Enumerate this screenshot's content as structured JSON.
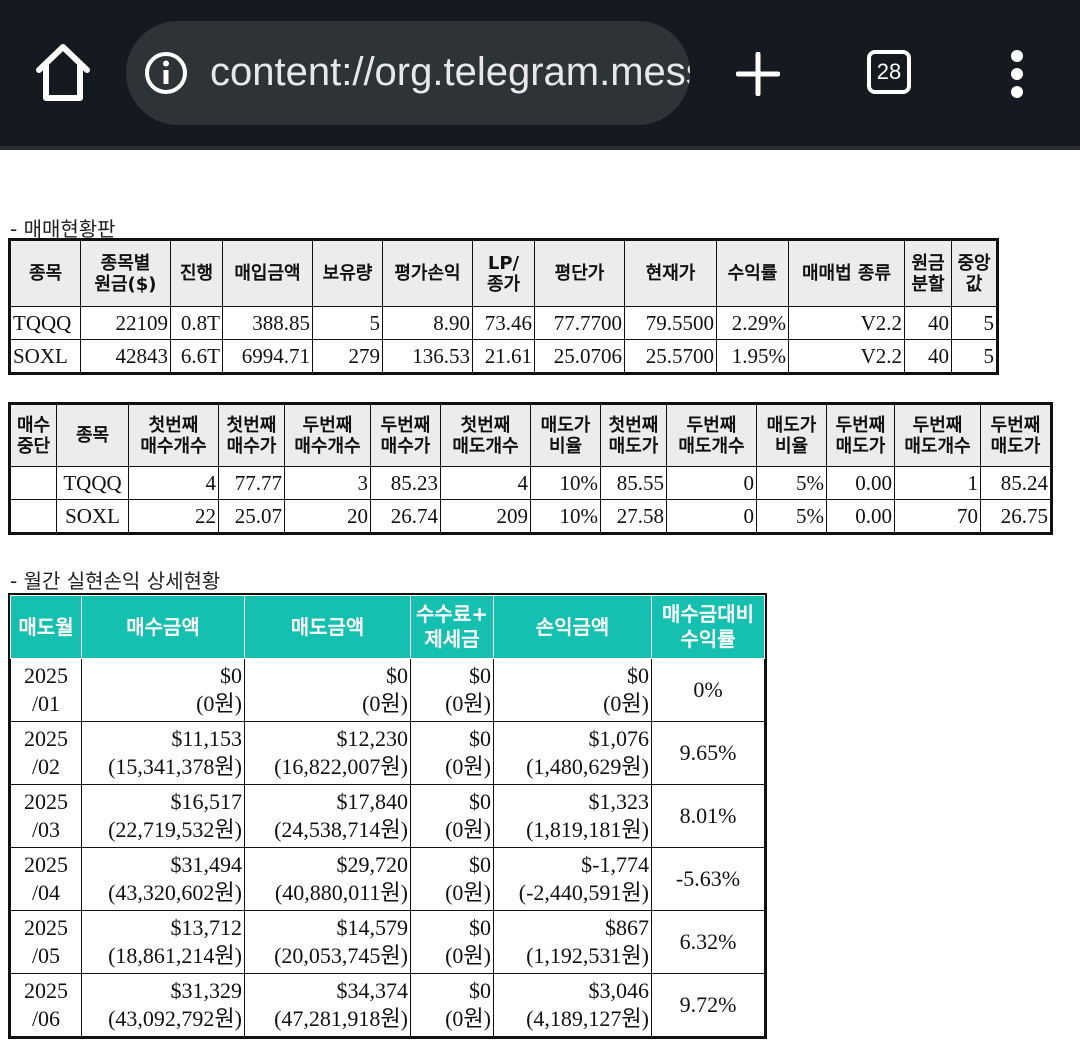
{
  "browser": {
    "url": "content://org.telegram.messenger",
    "tab_count": "28"
  },
  "section1_title": "- 매매현황판",
  "table1": {
    "headers": [
      {
        "l1": "종목",
        "l2": ""
      },
      {
        "l1": "종목별",
        "l2": "원금($)"
      },
      {
        "l1": "진행",
        "l2": ""
      },
      {
        "l1": "매입금액",
        "l2": ""
      },
      {
        "l1": "보유량",
        "l2": ""
      },
      {
        "l1": "평가손익",
        "l2": ""
      },
      {
        "l1": "LP/",
        "l2": "종가"
      },
      {
        "l1": "평단가",
        "l2": ""
      },
      {
        "l1": "현재가",
        "l2": ""
      },
      {
        "l1": "수익률",
        "l2": ""
      },
      {
        "l1": "매매법 종류",
        "l2": ""
      },
      {
        "l1": "원금",
        "l2": "분할"
      },
      {
        "l1": "중앙",
        "l2": "값"
      }
    ],
    "rows": [
      [
        "TQQQ",
        "22109",
        "0.8T",
        "388.85",
        "5",
        "8.90",
        "73.46",
        "77.7700",
        "79.5500",
        "2.29%",
        "V2.2",
        "40",
        "5"
      ],
      [
        "SOXL",
        "42843",
        "6.6T",
        "6994.71",
        "279",
        "136.53",
        "21.61",
        "25.0706",
        "25.5700",
        "1.95%",
        "V2.2",
        "40",
        "5"
      ]
    ]
  },
  "table2": {
    "headers": [
      {
        "l1": "매수",
        "l2": "중단"
      },
      {
        "l1": "종목",
        "l2": ""
      },
      {
        "l1": "첫번째",
        "l2": "매수개수"
      },
      {
        "l1": "첫번째",
        "l2": "매수가"
      },
      {
        "l1": "두번째",
        "l2": "매수개수"
      },
      {
        "l1": "두번째",
        "l2": "매수가"
      },
      {
        "l1": "첫번째",
        "l2": "매도개수"
      },
      {
        "l1": "매도가",
        "l2": "비율"
      },
      {
        "l1": "첫번째",
        "l2": "매도가"
      },
      {
        "l1": "두번째",
        "l2": "매도개수"
      },
      {
        "l1": "매도가",
        "l2": "비율"
      },
      {
        "l1": "두번째",
        "l2": "매도가"
      },
      {
        "l1": "두번째",
        "l2": "매도개수"
      },
      {
        "l1": "두번째",
        "l2": "매도가"
      }
    ],
    "rows": [
      [
        "",
        "TQQQ",
        "4",
        "77.77",
        "3",
        "85.23",
        "4",
        "10%",
        "85.55",
        "0",
        "5%",
        "0.00",
        "1",
        "85.24"
      ],
      [
        "",
        "SOXL",
        "22",
        "25.07",
        "20",
        "26.74",
        "209",
        "10%",
        "27.58",
        "0",
        "5%",
        "0.00",
        "70",
        "26.75"
      ]
    ]
  },
  "section3_title": "- 월간 실현손익 상세현황",
  "table3": {
    "headers": [
      {
        "l1": "매도월",
        "l2": ""
      },
      {
        "l1": "매수금액",
        "l2": ""
      },
      {
        "l1": "매도금액",
        "l2": ""
      },
      {
        "l1": "수수료+",
        "l2": "제세금"
      },
      {
        "l1": "손익금액",
        "l2": ""
      },
      {
        "l1": "매수금대비",
        "l2": "수익률"
      }
    ],
    "rows": [
      {
        "y": "2025",
        "m": "/01",
        "buy": "$0",
        "buy_w": "(0원)",
        "sell": "$0",
        "sell_w": "(0원)",
        "fee": "$0",
        "fee_w": "(0원)",
        "pl": "$0",
        "pl_w": "(0원)",
        "rate": "0%"
      },
      {
        "y": "2025",
        "m": "/02",
        "buy": "$11,153",
        "buy_w": "(15,341,378원)",
        "sell": "$12,230",
        "sell_w": "(16,822,007원)",
        "fee": "$0",
        "fee_w": "(0원)",
        "pl": "$1,076",
        "pl_w": "(1,480,629원)",
        "rate": "9.65%"
      },
      {
        "y": "2025",
        "m": "/03",
        "buy": "$16,517",
        "buy_w": "(22,719,532원)",
        "sell": "$17,840",
        "sell_w": "(24,538,714원)",
        "fee": "$0",
        "fee_w": "(0원)",
        "pl": "$1,323",
        "pl_w": "(1,819,181원)",
        "rate": "8.01%"
      },
      {
        "y": "2025",
        "m": "/04",
        "buy": "$31,494",
        "buy_w": "(43,320,602원)",
        "sell": "$29,720",
        "sell_w": "(40,880,011원)",
        "fee": "$0",
        "fee_w": "(0원)",
        "pl": "$-1,774",
        "pl_w": "(-2,440,591원)",
        "rate": "-5.63%"
      },
      {
        "y": "2025",
        "m": "/05",
        "buy": "$13,712",
        "buy_w": "(18,861,214원)",
        "sell": "$14,579",
        "sell_w": "(20,053,745원)",
        "fee": "$0",
        "fee_w": "(0원)",
        "pl": "$867",
        "pl_w": "(1,192,531원)",
        "rate": "6.32%"
      },
      {
        "y": "2025",
        "m": "/06",
        "buy": "$31,329",
        "buy_w": "(43,092,792원)",
        "sell": "$34,374",
        "sell_w": "(47,281,918원)",
        "fee": "$0",
        "fee_w": "(0원)",
        "pl": "$3,046",
        "pl_w": "(4,189,127원)",
        "rate": "9.72%"
      }
    ]
  }
}
